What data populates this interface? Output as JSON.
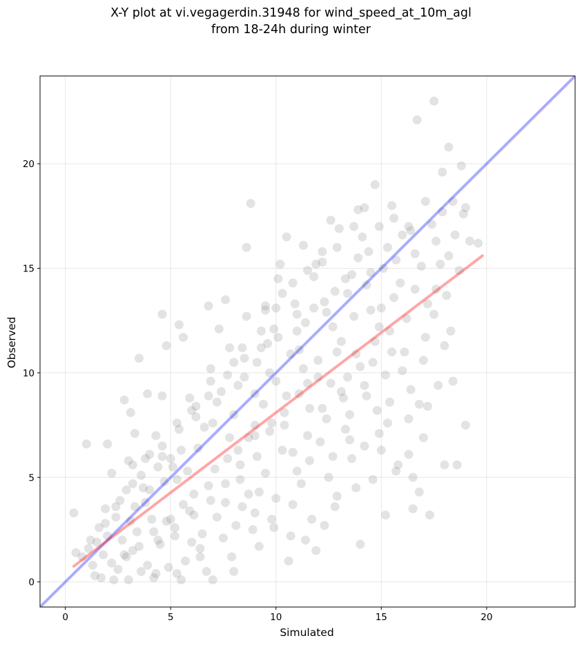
{
  "chart_data": {
    "type": "scatter",
    "title_line1": "X-Y plot at vi.vegagerdin.31948 for wind_speed_at_10m_agl",
    "title_line2": "from 18-24h during winter",
    "xlabel": "Simulated",
    "ylabel": "Observed",
    "xlim": [
      -1.2,
      24.2
    ],
    "ylim": [
      -1.2,
      24.2
    ],
    "xticks": [
      0,
      5,
      10,
      15,
      20
    ],
    "yticks": [
      0,
      5,
      10,
      15,
      20
    ],
    "grid": true,
    "point_color": "#808080",
    "point_alpha": 0.22,
    "identity_line": {
      "color": "#0000ff",
      "alpha": 0.33,
      "from": [
        -1.2,
        -1.2
      ],
      "to": [
        24.2,
        24.2
      ]
    },
    "fit_line": {
      "color": "#ff0000",
      "alpha": 0.35,
      "from": [
        0.4,
        0.75
      ],
      "to": [
        19.8,
        15.6
      ]
    },
    "points": [
      [
        0.4,
        3.3
      ],
      [
        0.5,
        1.4
      ],
      [
        1.0,
        6.6
      ],
      [
        1.1,
        1.6
      ],
      [
        1.4,
        0.3
      ],
      [
        1.5,
        1.9
      ],
      [
        1.9,
        3.5
      ],
      [
        2.0,
        6.6
      ],
      [
        2.2,
        5.2
      ],
      [
        2.3,
        0.1
      ],
      [
        2.6,
        3.9
      ],
      [
        2.8,
        8.7
      ],
      [
        2.9,
        1.2
      ],
      [
        3.0,
        0.1
      ],
      [
        3.1,
        2.9
      ],
      [
        3.1,
        8.1
      ],
      [
        3.2,
        5.6
      ],
      [
        3.3,
        7.1
      ],
      [
        3.5,
        10.7
      ],
      [
        3.6,
        0.5
      ],
      [
        3.8,
        3.8
      ],
      [
        3.9,
        9.0
      ],
      [
        4.0,
        6.1
      ],
      [
        4.2,
        2.4
      ],
      [
        4.3,
        0.4
      ],
      [
        4.6,
        12.8
      ],
      [
        4.6,
        8.9
      ],
      [
        4.7,
        4.8
      ],
      [
        4.8,
        11.3
      ],
      [
        5.0,
        5.9
      ],
      [
        5.2,
        2.2
      ],
      [
        5.4,
        12.3
      ],
      [
        5.5,
        0.1
      ],
      [
        5.6,
        11.7
      ],
      [
        5.8,
        5.3
      ],
      [
        5.9,
        3.4
      ],
      [
        6.2,
        8.4
      ],
      [
        6.4,
        1.6
      ],
      [
        6.8,
        13.2
      ],
      [
        6.9,
        9.6
      ],
      [
        7.0,
        0.1
      ],
      [
        7.3,
        12.1
      ],
      [
        7.6,
        13.5
      ],
      [
        7.6,
        3.8
      ],
      [
        7.8,
        6.9
      ],
      [
        8.0,
        0.5
      ],
      [
        8.4,
        11.2
      ],
      [
        8.6,
        16.0
      ],
      [
        8.7,
        4.2
      ],
      [
        8.8,
        18.1
      ],
      [
        9.0,
        7.0
      ],
      [
        9.2,
        1.7
      ],
      [
        9.5,
        13.0
      ],
      [
        9.7,
        10.0
      ],
      [
        9.8,
        3.0
      ],
      [
        10.1,
        14.5
      ],
      [
        10.3,
        6.3
      ],
      [
        10.5,
        16.5
      ],
      [
        10.7,
        2.2
      ],
      [
        11.0,
        12.8
      ],
      [
        11.2,
        4.7
      ],
      [
        11.3,
        16.1
      ],
      [
        11.5,
        9.5
      ],
      [
        11.9,
        1.5
      ],
      [
        12.2,
        15.8
      ],
      [
        12.4,
        7.8
      ],
      [
        12.6,
        17.3
      ],
      [
        12.8,
        3.6
      ],
      [
        13.1,
        11.5
      ],
      [
        13.3,
        14.5
      ],
      [
        13.6,
        5.9
      ],
      [
        13.9,
        17.8
      ],
      [
        14.0,
        1.8
      ],
      [
        14.2,
        9.4
      ],
      [
        14.5,
        13.0
      ],
      [
        14.7,
        19.0
      ],
      [
        14.9,
        7.1
      ],
      [
        15.1,
        15.0
      ],
      [
        15.2,
        3.2
      ],
      [
        15.4,
        12.0
      ],
      [
        15.6,
        17.4
      ],
      [
        15.8,
        5.6
      ],
      [
        16.0,
        10.1
      ],
      [
        16.3,
        6.1
      ],
      [
        16.5,
        3.5
      ],
      [
        16.6,
        15.7
      ],
      [
        16.7,
        22.1
      ],
      [
        16.8,
        8.5
      ],
      [
        17.0,
        6.9
      ],
      [
        17.2,
        13.3
      ],
      [
        17.3,
        3.2
      ],
      [
        17.5,
        23.0
      ],
      [
        17.7,
        9.4
      ],
      [
        17.9,
        19.6
      ],
      [
        18.0,
        5.6
      ],
      [
        18.2,
        20.8
      ],
      [
        18.3,
        12.0
      ],
      [
        18.6,
        5.6
      ],
      [
        18.8,
        19.9
      ],
      [
        19.0,
        7.5
      ],
      [
        19.2,
        16.3
      ],
      [
        19.6,
        16.2
      ],
      [
        12.0,
        10.6
      ],
      [
        11.6,
        8.3
      ],
      [
        12.7,
        12.2
      ],
      [
        13.4,
        9.8
      ],
      [
        10.7,
        10.9
      ],
      [
        9.4,
        8.5
      ],
      [
        8.2,
        6.3
      ],
      [
        7.1,
        5.4
      ],
      [
        6.1,
        4.2
      ],
      [
        5.3,
        4.9
      ],
      [
        4.1,
        3.0
      ],
      [
        3.4,
        2.4
      ],
      [
        2.7,
        2.0
      ],
      [
        1.8,
        1.3
      ],
      [
        9.9,
        12.1
      ],
      [
        10.9,
        13.3
      ],
      [
        11.8,
        14.6
      ],
      [
        12.9,
        11.0
      ],
      [
        13.7,
        12.7
      ],
      [
        14.3,
        14.2
      ],
      [
        15.0,
        13.1
      ],
      [
        15.9,
        14.3
      ],
      [
        16.9,
        15.1
      ],
      [
        17.6,
        16.3
      ],
      [
        18.5,
        16.6
      ],
      [
        14.6,
        10.5
      ],
      [
        13.2,
        8.8
      ],
      [
        12.1,
        6.7
      ],
      [
        11.0,
        5.3
      ],
      [
        10.0,
        4.0
      ],
      [
        9.0,
        3.3
      ],
      [
        8.1,
        2.7
      ],
      [
        6.5,
        2.3
      ],
      [
        5.7,
        1.0
      ],
      [
        4.9,
        0.7
      ],
      [
        7.4,
        9.1
      ],
      [
        8.5,
        9.8
      ],
      [
        9.6,
        11.4
      ],
      [
        6.6,
        7.4
      ],
      [
        5.5,
        6.3
      ],
      [
        4.4,
        5.5
      ],
      [
        3.7,
        4.5
      ],
      [
        2.4,
        3.1
      ],
      [
        1.6,
        2.6
      ],
      [
        13.9,
        15.5
      ],
      [
        12.3,
        13.4
      ],
      [
        11.4,
        12.4
      ],
      [
        10.4,
        7.5
      ],
      [
        9.1,
        6.0
      ],
      [
        8.3,
        4.9
      ],
      [
        7.2,
        3.1
      ],
      [
        6.0,
        1.9
      ],
      [
        15.5,
        11.0
      ],
      [
        16.2,
        12.6
      ],
      [
        17.1,
        11.7
      ],
      [
        18.1,
        13.7
      ],
      [
        14.1,
        16.5
      ],
      [
        13.0,
        16.9
      ],
      [
        11.9,
        15.2
      ],
      [
        10.2,
        15.2
      ],
      [
        9.3,
        12.0
      ],
      [
        8.0,
        10.5
      ],
      [
        6.9,
        10.2
      ],
      [
        5.9,
        8.8
      ],
      [
        4.3,
        7.0
      ],
      [
        3.0,
        5.8
      ],
      [
        12.5,
        5.0
      ],
      [
        13.5,
        6.8
      ],
      [
        14.8,
        8.2
      ],
      [
        15.3,
        7.6
      ],
      [
        16.4,
        9.2
      ],
      [
        11.7,
        3.0
      ],
      [
        10.6,
        1.0
      ],
      [
        9.5,
        5.2
      ],
      [
        8.9,
        2.5
      ],
      [
        7.9,
        1.2
      ],
      [
        6.7,
        0.5
      ],
      [
        5.0,
        3.0
      ],
      [
        4.5,
        1.8
      ],
      [
        3.9,
        0.8
      ],
      [
        2.2,
        0.9
      ],
      [
        1.3,
        0.8
      ],
      [
        2.0,
        2.2
      ],
      [
        3.3,
        3.6
      ],
      [
        4.0,
        4.4
      ],
      [
        5.1,
        5.5
      ],
      [
        6.3,
        6.4
      ],
      [
        7.0,
        7.6
      ],
      [
        8.0,
        8.0
      ],
      [
        9.0,
        9.0
      ],
      [
        10.0,
        9.6
      ],
      [
        11.1,
        11.1
      ],
      [
        12.4,
        12.9
      ],
      [
        13.4,
        13.8
      ],
      [
        14.5,
        14.8
      ],
      [
        15.7,
        15.4
      ],
      [
        16.4,
        16.8
      ],
      [
        17.4,
        17.1
      ],
      [
        18.4,
        18.2
      ],
      [
        19.0,
        17.9
      ],
      [
        12.6,
        9.5
      ],
      [
        13.8,
        10.9
      ],
      [
        14.9,
        12.2
      ],
      [
        15.6,
        13.6
      ],
      [
        16.6,
        14.0
      ],
      [
        17.8,
        15.2
      ],
      [
        18.7,
        14.9
      ],
      [
        10.5,
        8.9
      ],
      [
        11.3,
        10.2
      ],
      [
        9.7,
        7.2
      ],
      [
        8.7,
        6.9
      ],
      [
        7.7,
        5.9
      ],
      [
        6.8,
        4.6
      ],
      [
        5.6,
        3.7
      ],
      [
        4.8,
        2.9
      ],
      [
        10.8,
        6.2
      ],
      [
        11.5,
        7.0
      ],
      [
        12.2,
        8.3
      ],
      [
        13.1,
        9.1
      ],
      [
        14.0,
        10.3
      ],
      [
        14.7,
        11.5
      ],
      [
        15.2,
        9.9
      ],
      [
        16.1,
        11.0
      ],
      [
        9.2,
        4.3
      ],
      [
        8.4,
        3.6
      ],
      [
        7.5,
        2.1
      ],
      [
        6.4,
        1.2
      ],
      [
        5.3,
        0.4
      ],
      [
        4.2,
        0.2
      ],
      [
        3.2,
        1.5
      ],
      [
        2.5,
        0.6
      ],
      [
        1.7,
        0.2
      ],
      [
        2.9,
        4.4
      ],
      [
        3.6,
        5.1
      ],
      [
        4.6,
        6.5
      ],
      [
        5.4,
        7.3
      ],
      [
        6.2,
        7.9
      ],
      [
        7.2,
        8.6
      ],
      [
        8.2,
        9.4
      ],
      [
        9.1,
        10.5
      ],
      [
        10.1,
        11.7
      ],
      [
        11.0,
        12.0
      ],
      [
        11.8,
        13.1
      ],
      [
        12.8,
        13.9
      ],
      [
        13.6,
        14.7
      ],
      [
        14.4,
        15.8
      ],
      [
        15.3,
        16.0
      ],
      [
        16.0,
        16.6
      ],
      [
        10.3,
        13.8
      ],
      [
        9.5,
        13.2
      ],
      [
        8.6,
        12.7
      ],
      [
        7.8,
        11.2
      ],
      [
        12.0,
        9.8
      ],
      [
        11.1,
        9.0
      ],
      [
        10.4,
        8.1
      ],
      [
        9.8,
        7.6
      ],
      [
        9.0,
        7.5
      ],
      [
        8.3,
        5.6
      ],
      [
        7.6,
        4.7
      ],
      [
        6.9,
        3.9
      ],
      [
        6.1,
        3.2
      ],
      [
        5.2,
        2.6
      ],
      [
        4.4,
        2.0
      ],
      [
        3.5,
        1.7
      ],
      [
        2.8,
        1.3
      ],
      [
        13.3,
        7.3
      ],
      [
        14.2,
        6.5
      ],
      [
        13.8,
        4.5
      ],
      [
        12.9,
        4.1
      ],
      [
        14.6,
        4.9
      ],
      [
        15.0,
        6.3
      ],
      [
        12.3,
        2.7
      ],
      [
        11.4,
        2.0
      ],
      [
        10.8,
        3.7
      ],
      [
        9.9,
        2.6
      ],
      [
        11.6,
        5.8
      ],
      [
        12.7,
        6.0
      ],
      [
        13.5,
        8.0
      ],
      [
        14.3,
        8.9
      ],
      [
        15.4,
        8.6
      ],
      [
        16.3,
        7.8
      ],
      [
        17.0,
        10.6
      ],
      [
        17.5,
        12.8
      ],
      [
        18.0,
        11.3
      ],
      [
        18.4,
        9.6
      ],
      [
        17.2,
        8.4
      ],
      [
        16.8,
        4.3
      ],
      [
        16.5,
        5.0
      ],
      [
        15.7,
        5.3
      ],
      [
        17.6,
        14.0
      ],
      [
        18.2,
        15.6
      ],
      [
        18.9,
        17.6
      ],
      [
        17.9,
        17.7
      ],
      [
        17.1,
        18.2
      ],
      [
        16.3,
        17.0
      ],
      [
        15.5,
        18.0
      ],
      [
        14.9,
        17.0
      ],
      [
        14.2,
        17.9
      ],
      [
        13.7,
        17.0
      ],
      [
        12.9,
        16.0
      ],
      [
        12.2,
        15.3
      ],
      [
        11.5,
        14.9
      ],
      [
        10.8,
        14.3
      ],
      [
        10.0,
        13.1
      ],
      [
        9.3,
        11.2
      ],
      [
        8.5,
        10.7
      ],
      [
        7.7,
        9.9
      ],
      [
        6.8,
        8.9
      ],
      [
        6.0,
        8.2
      ],
      [
        5.3,
        7.6
      ],
      [
        4.6,
        6.0
      ],
      [
        3.8,
        5.9
      ],
      [
        3.2,
        4.7
      ],
      [
        2.4,
        3.6
      ],
      [
        1.9,
        2.8
      ],
      [
        1.2,
        2.0
      ],
      [
        0.8,
        1.2
      ]
    ]
  }
}
